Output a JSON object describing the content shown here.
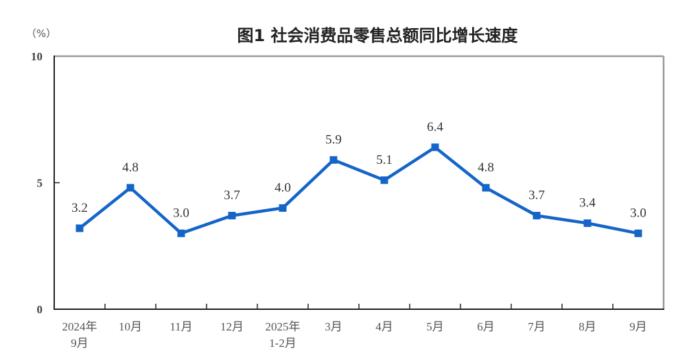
{
  "chart_data": {
    "type": "line",
    "title": "图1  社会消费品零售总额同比增长速度",
    "ylabel": "（%）",
    "xlabel": "",
    "ylim": [
      0,
      10
    ],
    "yticks": [
      0,
      5,
      10
    ],
    "grid": false,
    "legend": null,
    "categories": [
      [
        "2024年",
        "9月"
      ],
      [
        "10月"
      ],
      [
        "11月"
      ],
      [
        "12月"
      ],
      [
        "2025年",
        "1-2月"
      ],
      [
        "3月"
      ],
      [
        "4月"
      ],
      [
        "5月"
      ],
      [
        "6月"
      ],
      [
        "7月"
      ],
      [
        "8月"
      ],
      [
        "9月"
      ]
    ],
    "series": [
      {
        "name": "社会消费品零售总额同比增长速度",
        "color": "#1565c8",
        "values": [
          3.2,
          4.8,
          3.0,
          3.7,
          4.0,
          5.9,
          5.1,
          6.4,
          4.8,
          3.7,
          3.4,
          3.0
        ],
        "labels": [
          "3.2",
          "4.8",
          "3.0",
          "3.7",
          "4.0",
          "5.9",
          "5.1",
          "6.4",
          "4.8",
          "3.7",
          "3.4",
          "3.0"
        ]
      }
    ]
  },
  "colors": {
    "line": "#1565c8",
    "marker": "#1565c8",
    "axis": "#222222",
    "frame": "#999999"
  }
}
